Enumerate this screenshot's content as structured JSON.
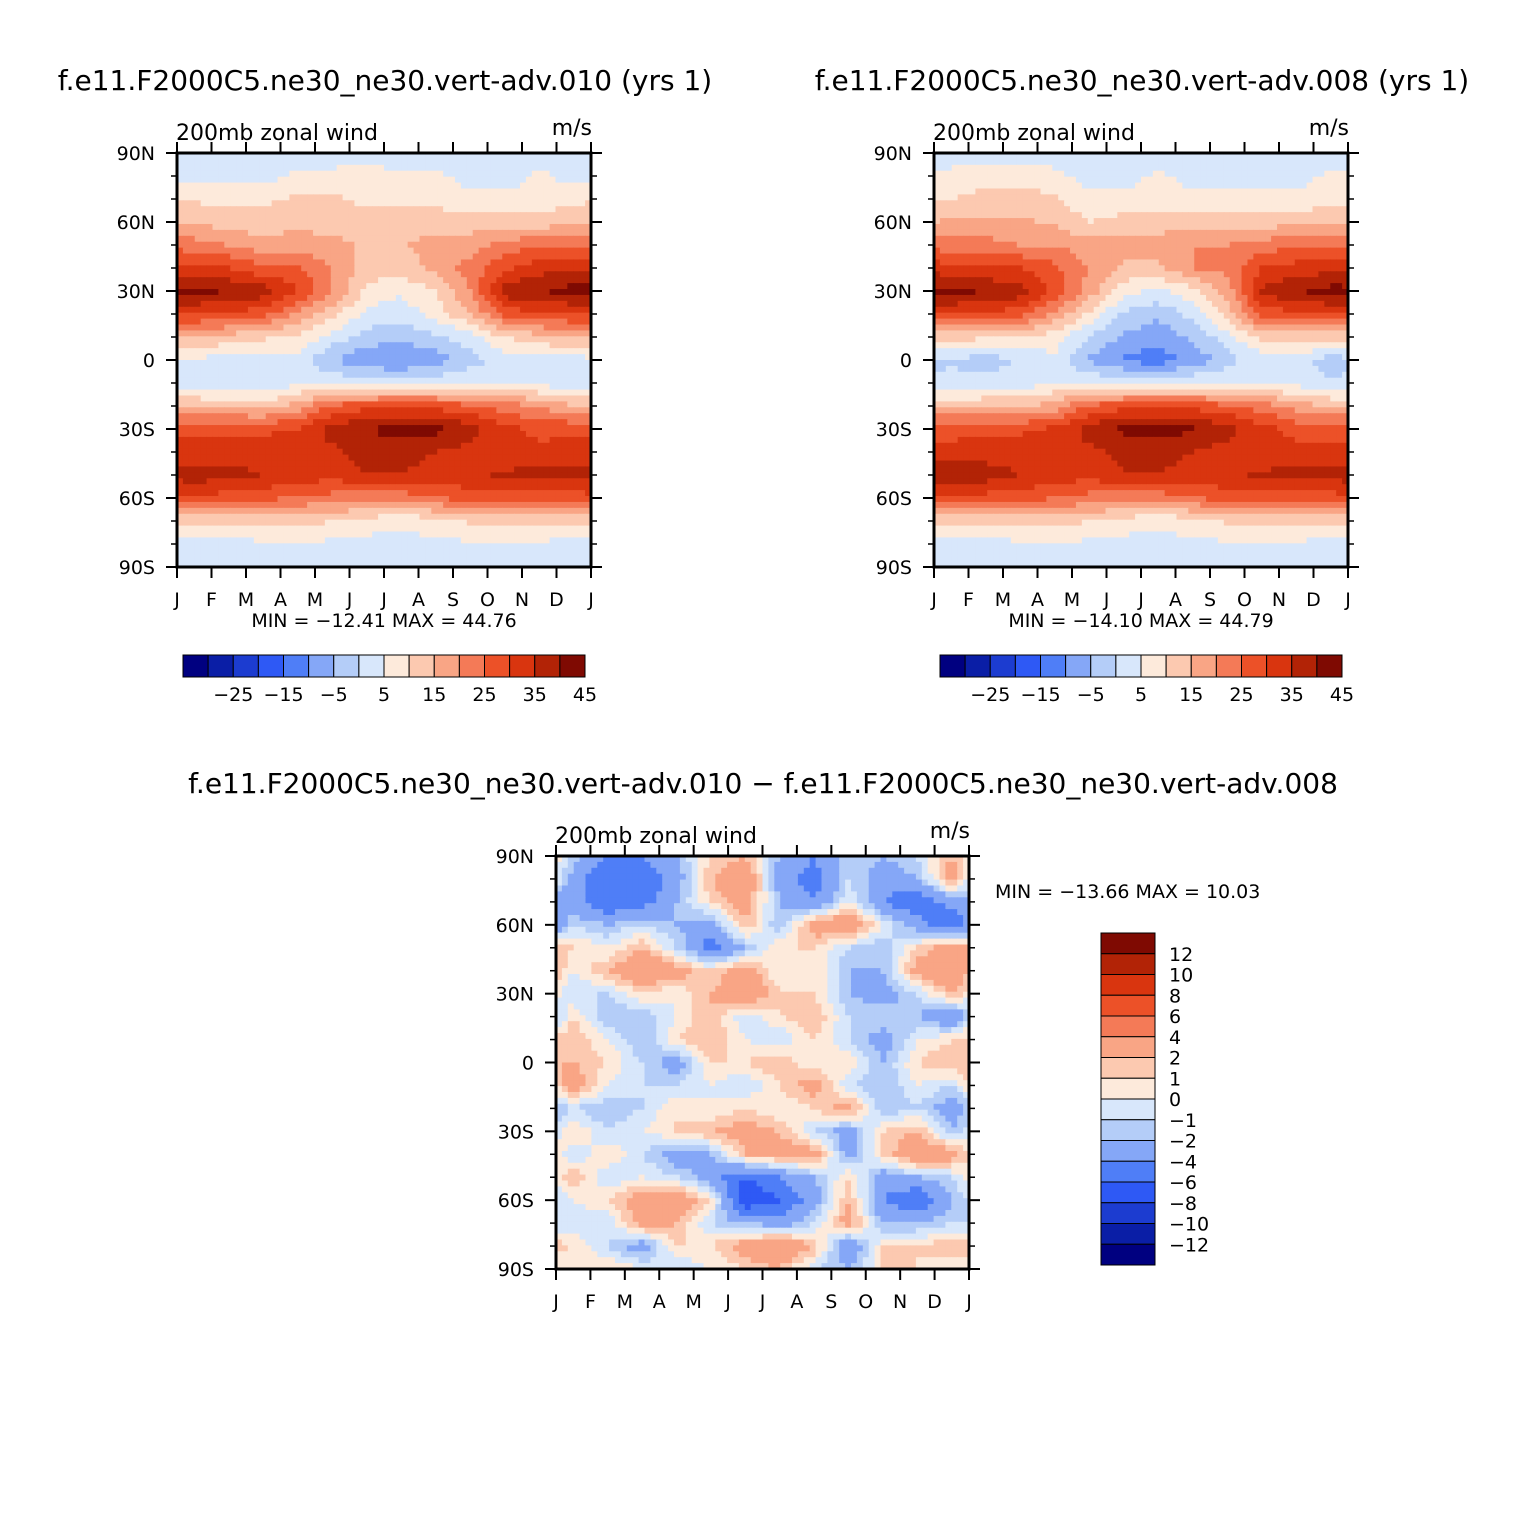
{
  "chart_data": [
    {
      "type": "heatmap",
      "title": "f.e11.F2000C5.ne30_ne30.vert-adv.010 (yrs 1)",
      "left_string": "200mb zonal wind",
      "units": "m/s",
      "x_ticks": [
        "J",
        "F",
        "M",
        "A",
        "M",
        "J",
        "J",
        "A",
        "S",
        "O",
        "N",
        "D",
        "J"
      ],
      "y_ticks": [
        "90N",
        "60N",
        "30N",
        "0",
        "30S",
        "60S",
        "90S"
      ],
      "min_max": "MIN = −12.41 MAX =   44.76",
      "colorbar_labels": [
        "−25",
        "−15",
        "−5",
        "5",
        "15",
        "25",
        "35",
        "45"
      ],
      "levels": [
        -30,
        -25,
        -20,
        -15,
        -10,
        -5,
        0,
        5,
        10,
        15,
        20,
        25,
        30,
        35,
        40,
        45
      ],
      "months": [
        "J",
        "F",
        "M",
        "A",
        "M",
        "J",
        "J",
        "A",
        "S",
        "O",
        "N",
        "D"
      ],
      "latitudes": [
        90,
        80,
        70,
        60,
        50,
        40,
        30,
        20,
        10,
        0,
        -10,
        -20,
        -30,
        -40,
        -50,
        -60,
        -70,
        -80,
        -90
      ],
      "z": [
        [
          3,
          3,
          3,
          3,
          3,
          3,
          0,
          3,
          3,
          3,
          3,
          3
        ],
        [
          3,
          3,
          3,
          6,
          6,
          8,
          6,
          6,
          3,
          3,
          6,
          3
        ],
        [
          9,
          9,
          9,
          11,
          11,
          9,
          9,
          9,
          6,
          6,
          6,
          9
        ],
        [
          15,
          12,
          12,
          14,
          12,
          12,
          12,
          12,
          12,
          12,
          12,
          14
        ],
        [
          22,
          20,
          17,
          17,
          17,
          14,
          14,
          18,
          18,
          22,
          24,
          24
        ],
        [
          31,
          30,
          26,
          26,
          20,
          12,
          12,
          17,
          22,
          29,
          33,
          34
        ],
        [
          42,
          40,
          38,
          30,
          20,
          9,
          6,
          10,
          20,
          38,
          40,
          42
        ],
        [
          30,
          29,
          27,
          19,
          12,
          3,
          2,
          7,
          15,
          27,
          29,
          30
        ],
        [
          16,
          13,
          11,
          9,
          3,
          -2,
          -3,
          -1,
          3,
          10,
          13,
          16
        ],
        [
          4,
          3,
          2,
          3,
          -5,
          -9,
          -11,
          -8,
          -2,
          2,
          3,
          3
        ],
        [
          0,
          1,
          1,
          4,
          4,
          3,
          3,
          4,
          4,
          4,
          3,
          1
        ],
        [
          15,
          14,
          12,
          17,
          26,
          28,
          29,
          28,
          26,
          22,
          20,
          15
        ],
        [
          29,
          29,
          29,
          30,
          37,
          40,
          42,
          42,
          37,
          32,
          28,
          29
        ],
        [
          32,
          32,
          33,
          33,
          34,
          37,
          37,
          35,
          33,
          31,
          32,
          32
        ],
        [
          38,
          37,
          35,
          33,
          32,
          35,
          35,
          33,
          34,
          36,
          37,
          37
        ],
        [
          28,
          28,
          27,
          24,
          23,
          22,
          22,
          24,
          28,
          28,
          28,
          28
        ],
        [
          12,
          12,
          12,
          12,
          10,
          8,
          6,
          8,
          11,
          12,
          12,
          12
        ],
        [
          3,
          3,
          4,
          4,
          4,
          3,
          3,
          4,
          4,
          4,
          4,
          3
        ],
        [
          3,
          3,
          1,
          0,
          3,
          3,
          3,
          3,
          3,
          3,
          3,
          3
        ]
      ]
    },
    {
      "type": "heatmap",
      "title": "f.e11.F2000C5.ne30_ne30.vert-adv.008 (yrs 1)",
      "left_string": "200mb zonal wind",
      "units": "m/s",
      "x_ticks": [
        "J",
        "F",
        "M",
        "A",
        "M",
        "J",
        "J",
        "A",
        "S",
        "O",
        "N",
        "D",
        "J"
      ],
      "y_ticks": [
        "90N",
        "60N",
        "30N",
        "0",
        "30S",
        "60S",
        "90S"
      ],
      "min_max": "MIN = −14.10 MAX =   44.79",
      "colorbar_labels": [
        "−25",
        "−15",
        "−5",
        "5",
        "15",
        "25",
        "35",
        "45"
      ],
      "levels": [
        -30,
        -25,
        -20,
        -15,
        -10,
        -5,
        0,
        5,
        10,
        15,
        20,
        25,
        30,
        35,
        40,
        45
      ],
      "months": [
        "J",
        "F",
        "M",
        "A",
        "M",
        "J",
        "J",
        "A",
        "S",
        "O",
        "N",
        "D"
      ],
      "latitudes": [
        90,
        80,
        70,
        60,
        50,
        40,
        30,
        20,
        10,
        0,
        -10,
        -20,
        -30,
        -40,
        -50,
        -60,
        -70,
        -80,
        -90
      ],
      "z": [
        [
          3,
          3,
          3,
          3,
          3,
          3,
          0,
          3,
          3,
          3,
          3,
          3
        ],
        [
          6,
          8,
          8,
          6,
          3,
          3,
          6,
          3,
          3,
          3,
          3,
          6
        ],
        [
          10,
          12,
          12,
          11,
          6,
          6,
          8,
          6,
          6,
          6,
          6,
          8
        ],
        [
          16,
          16,
          16,
          14,
          10,
          12,
          12,
          12,
          12,
          12,
          14,
          14
        ],
        [
          22,
          22,
          20,
          20,
          17,
          17,
          18,
          20,
          20,
          22,
          24,
          24
        ],
        [
          32,
          30,
          30,
          26,
          20,
          14,
          14,
          20,
          22,
          30,
          32,
          33
        ],
        [
          42,
          40,
          38,
          28,
          18,
          7,
          4,
          8,
          17,
          36,
          40,
          42
        ],
        [
          30,
          29,
          27,
          19,
          9,
          -1,
          -4,
          2,
          12,
          27,
          29,
          30
        ],
        [
          12,
          11,
          10,
          7,
          0,
          -6,
          -8,
          -4,
          3,
          12,
          12,
          12
        ],
        [
          0,
          -3,
          1,
          4,
          -6,
          -11,
          -13,
          -9,
          -2,
          2,
          3,
          -3
        ],
        [
          1,
          2,
          2,
          5,
          4,
          4,
          4,
          5,
          5,
          4,
          3,
          1
        ],
        [
          14,
          14,
          14,
          17,
          26,
          28,
          29,
          28,
          26,
          22,
          18,
          14
        ],
        [
          28,
          29,
          29,
          31,
          37,
          41,
          42,
          41,
          37,
          32,
          28,
          28
        ],
        [
          32,
          32,
          33,
          33,
          34,
          36,
          37,
          35,
          33,
          31,
          32,
          32
        ],
        [
          39,
          38,
          35,
          33,
          32,
          35,
          35,
          33,
          34,
          36,
          37,
          37
        ],
        [
          28,
          28,
          27,
          25,
          23,
          22,
          22,
          24,
          28,
          28,
          28,
          28
        ],
        [
          12,
          12,
          12,
          12,
          10,
          8,
          6,
          8,
          11,
          12,
          12,
          12
        ],
        [
          3,
          3,
          4,
          4,
          4,
          3,
          3,
          4,
          4,
          4,
          4,
          3
        ],
        [
          3,
          3,
          1,
          0,
          3,
          3,
          3,
          3,
          3,
          3,
          3,
          3
        ]
      ]
    },
    {
      "type": "heatmap",
      "title": "f.e11.F2000C5.ne30_ne30.vert-adv.010 − f.e11.F2000C5.ne30_ne30.vert-adv.008",
      "left_string": "200mb zonal wind",
      "units": "m/s",
      "x_ticks": [
        "J",
        "F",
        "M",
        "A",
        "M",
        "J",
        "J",
        "A",
        "S",
        "O",
        "N",
        "D",
        "J"
      ],
      "y_ticks": [
        "90N",
        "60N",
        "30N",
        "0",
        "30S",
        "60S",
        "90S"
      ],
      "min_max": "MIN = −13.66 MAX =   10.03",
      "colorbar_labels": [
        "12",
        "10",
        "8",
        "6",
        "4",
        "2",
        "1",
        "0",
        "−1",
        "−2",
        "−4",
        "−6",
        "−8",
        "−10",
        "−12"
      ],
      "levels": [
        -12,
        -10,
        -8,
        -6,
        -4,
        -2,
        -1,
        0,
        1,
        2,
        4,
        6,
        8,
        10,
        12
      ],
      "months": [
        "J",
        "F",
        "M",
        "A",
        "M",
        "J",
        "J",
        "A",
        "S",
        "O",
        "N",
        "D"
      ],
      "latitudes": [
        90,
        80,
        70,
        60,
        50,
        40,
        30,
        20,
        10,
        0,
        -10,
        -20,
        -30,
        -40,
        -50,
        -60,
        -70,
        -80,
        -90
      ],
      "z": [
        [
          -1,
          -4,
          -4,
          -2,
          1,
          2,
          -2,
          -4,
          -1,
          -2,
          -1,
          2
        ],
        [
          -3,
          -6,
          -6,
          -3,
          2,
          4,
          -3,
          -5,
          -1,
          -3,
          -2,
          3
        ],
        [
          -3,
          -6,
          -5,
          -2,
          1,
          3,
          -2,
          -4,
          0,
          -4,
          -6,
          -3
        ],
        [
          -1,
          -2,
          -1,
          -2,
          -3,
          2,
          -2,
          3,
          4,
          0,
          -3,
          -6
        ],
        [
          1,
          0,
          2,
          -1,
          -5,
          -2,
          1,
          1,
          -1,
          -2,
          1,
          3
        ],
        [
          0,
          2,
          4,
          3,
          1,
          3,
          0,
          1,
          -2,
          -2,
          3,
          4
        ],
        [
          -1,
          -1,
          1,
          0,
          2,
          4,
          1,
          1,
          -2,
          -3,
          -1,
          2
        ],
        [
          1,
          -2,
          -2,
          0,
          2,
          -1,
          1,
          2,
          -1,
          -1,
          -2,
          -4
        ],
        [
          2,
          0,
          -2,
          1,
          2,
          0,
          -1,
          1,
          -1,
          -3,
          0,
          1
        ],
        [
          2,
          1,
          -1,
          -3,
          1,
          1,
          2,
          0,
          1,
          -2,
          1,
          2
        ],
        [
          3,
          0,
          -1,
          -1,
          0,
          -1,
          1,
          3,
          -1,
          -2,
          0,
          -1
        ],
        [
          -1,
          -2,
          -1,
          1,
          0,
          1,
          0,
          1,
          3,
          -2,
          -1,
          -3
        ],
        [
          1,
          -1,
          0,
          1,
          2,
          3,
          2,
          -1,
          -3,
          1,
          2,
          -2
        ],
        [
          -1,
          1,
          -1,
          -3,
          -2,
          2,
          3,
          3,
          -3,
          1,
          4,
          3
        ],
        [
          2,
          -1,
          0,
          -1,
          -3,
          -6,
          -4,
          -2,
          1,
          -3,
          -2,
          -1
        ],
        [
          0,
          1,
          3,
          4,
          1,
          -8,
          -6,
          -3,
          2,
          -4,
          -6,
          -2
        ],
        [
          -1,
          -1,
          3,
          2,
          -1,
          -2,
          -3,
          -1,
          3,
          -2,
          -2,
          -1
        ],
        [
          1,
          -1,
          -3,
          1,
          1,
          3,
          4,
          2,
          -4,
          1,
          1,
          2
        ],
        [
          0,
          1,
          0,
          -1,
          0,
          1,
          2,
          -1,
          -2,
          1,
          1,
          0
        ]
      ]
    }
  ],
  "colors": {
    "abs_fills": [
      "#000080",
      "#0a1ea6",
      "#1c3cd0",
      "#2e59f5",
      "#4f7ef7",
      "#85a7f7",
      "#b4cdf8",
      "#d8e7fb",
      "#fdeadb",
      "#fcc9b0",
      "#f9a585",
      "#f47a57",
      "#ec5128",
      "#d9350f",
      "#b22306",
      "#7f0a02"
    ],
    "diff_fills": [
      "#000080",
      "#0a1ea6",
      "#1c3cd0",
      "#2e59f5",
      "#4f7ef7",
      "#85a7f7",
      "#b4cdf8",
      "#d8e7fb",
      "#fdeadb",
      "#fcc9b0",
      "#f9a585",
      "#f47a57",
      "#ec5128",
      "#d9350f",
      "#b22306",
      "#7f0a02"
    ]
  }
}
